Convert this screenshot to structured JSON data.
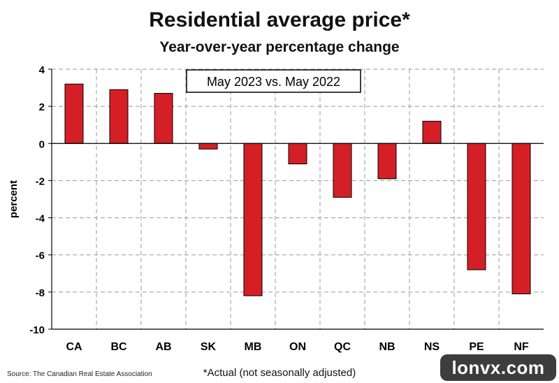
{
  "chart_data": {
    "type": "bar",
    "title": "Residential average price*",
    "subtitle": "Year-over-year percentage change",
    "annotation": "May 2023 vs. May 2022",
    "ylabel": "percent",
    "xlabel": "",
    "categories": [
      "CA",
      "BC",
      "AB",
      "SK",
      "MB",
      "ON",
      "QC",
      "NB",
      "NS",
      "PE",
      "NF"
    ],
    "values": [
      3.2,
      2.9,
      2.7,
      -0.3,
      -8.2,
      -1.1,
      -2.9,
      -1.9,
      1.2,
      -6.8,
      -8.1
    ],
    "ylim": [
      -10,
      4
    ],
    "yticks": [
      4,
      2,
      0,
      -2,
      -4,
      -6,
      -8,
      -10
    ],
    "grid": true,
    "bar_color": "#d41f26"
  },
  "footnote": "*Actual (not seasonally adjusted)",
  "source": "Source: The Canadian Real Estate Association",
  "watermark": "lonvx.com"
}
